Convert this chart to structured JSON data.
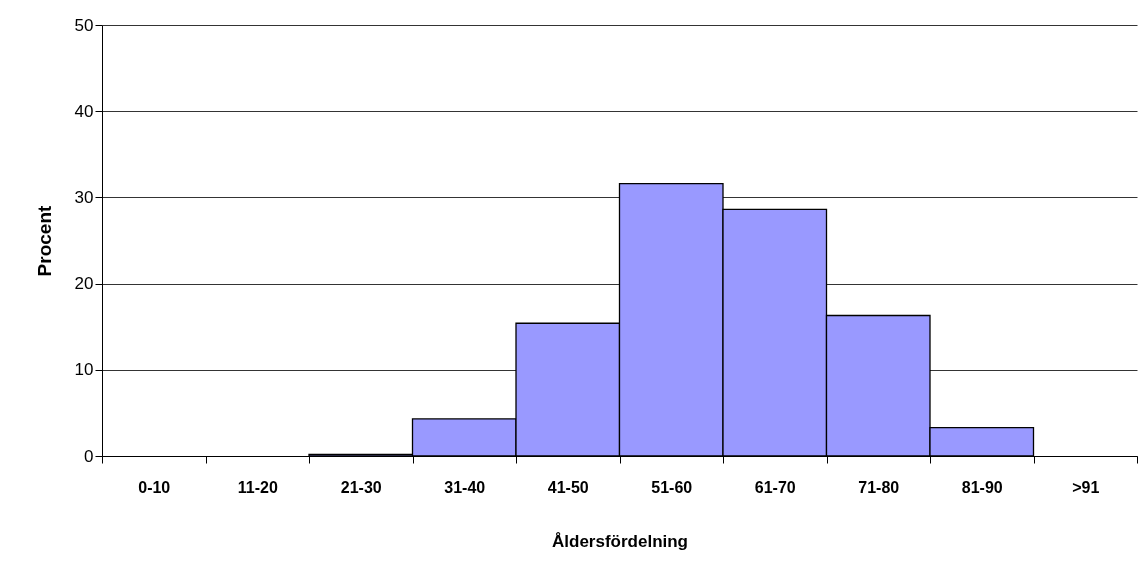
{
  "chart_data": {
    "type": "bar",
    "xlabel": "Åldersfördelning",
    "ylabel": "Procent",
    "categories": [
      "0-10",
      "11-20",
      "21-30",
      "31-40",
      "41-50",
      "51-60",
      "61-70",
      "71-80",
      "81-90",
      ">91"
    ],
    "values": [
      null,
      null,
      0.2,
      4.3,
      15.4,
      31.6,
      28.6,
      16.3,
      3.3,
      null
    ],
    "color": "#9999ff",
    "ylim": [
      0,
      50
    ],
    "yticks": [
      0,
      10,
      20,
      30,
      40,
      50
    ],
    "grid": "y"
  }
}
